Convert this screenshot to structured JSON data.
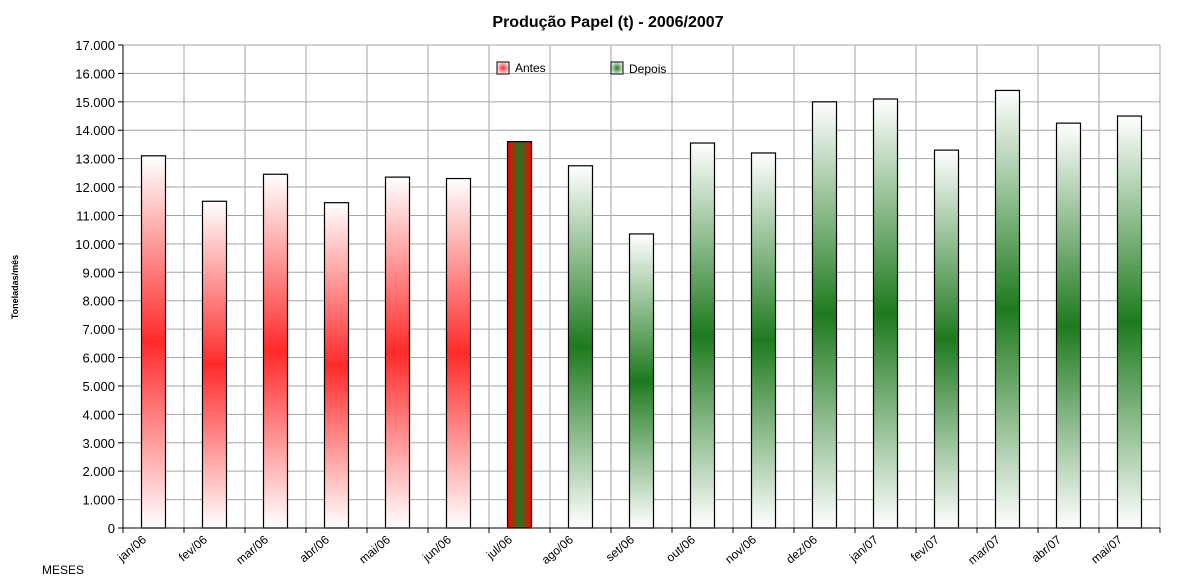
{
  "chart_data": {
    "type": "bar",
    "title": "Produção Papel (t) - 2006/2007",
    "xlabel": "MESES",
    "ylabel": "Toneladas/mês",
    "ylim": [
      0,
      17000
    ],
    "ytick_step": 1000,
    "ytick_labels": [
      "0",
      "1.000",
      "2.000",
      "3.000",
      "4.000",
      "5.000",
      "6.000",
      "7.000",
      "8.000",
      "9.000",
      "10.000",
      "11.000",
      "12.000",
      "13.000",
      "14.000",
      "15.000",
      "16.000",
      "17.000"
    ],
    "grid": true,
    "legend_position": "top",
    "categories": [
      "jan/06",
      "fev/06",
      "mar/06",
      "abr/06",
      "mai/06",
      "jun/06",
      "jul/06",
      "ago/06",
      "set/06",
      "out/06",
      "nov/06",
      "dez/06",
      "jan/07",
      "fev/07",
      "mar/07",
      "abr/07",
      "mai/07"
    ],
    "values": [
      13100,
      11500,
      12450,
      11450,
      12350,
      12300,
      13600,
      12750,
      10350,
      13550,
      13200,
      15000,
      15100,
      13300,
      15400,
      14250,
      14500
    ],
    "series": [
      {
        "name": "Antes",
        "color": "#ff0000",
        "indices": [
          0,
          1,
          2,
          3,
          4,
          5
        ]
      },
      {
        "name": "Depois",
        "color": "#1e7a1e",
        "indices": [
          7,
          8,
          9,
          10,
          11,
          12,
          13,
          14,
          15,
          16
        ]
      }
    ],
    "transition_index": 6
  }
}
